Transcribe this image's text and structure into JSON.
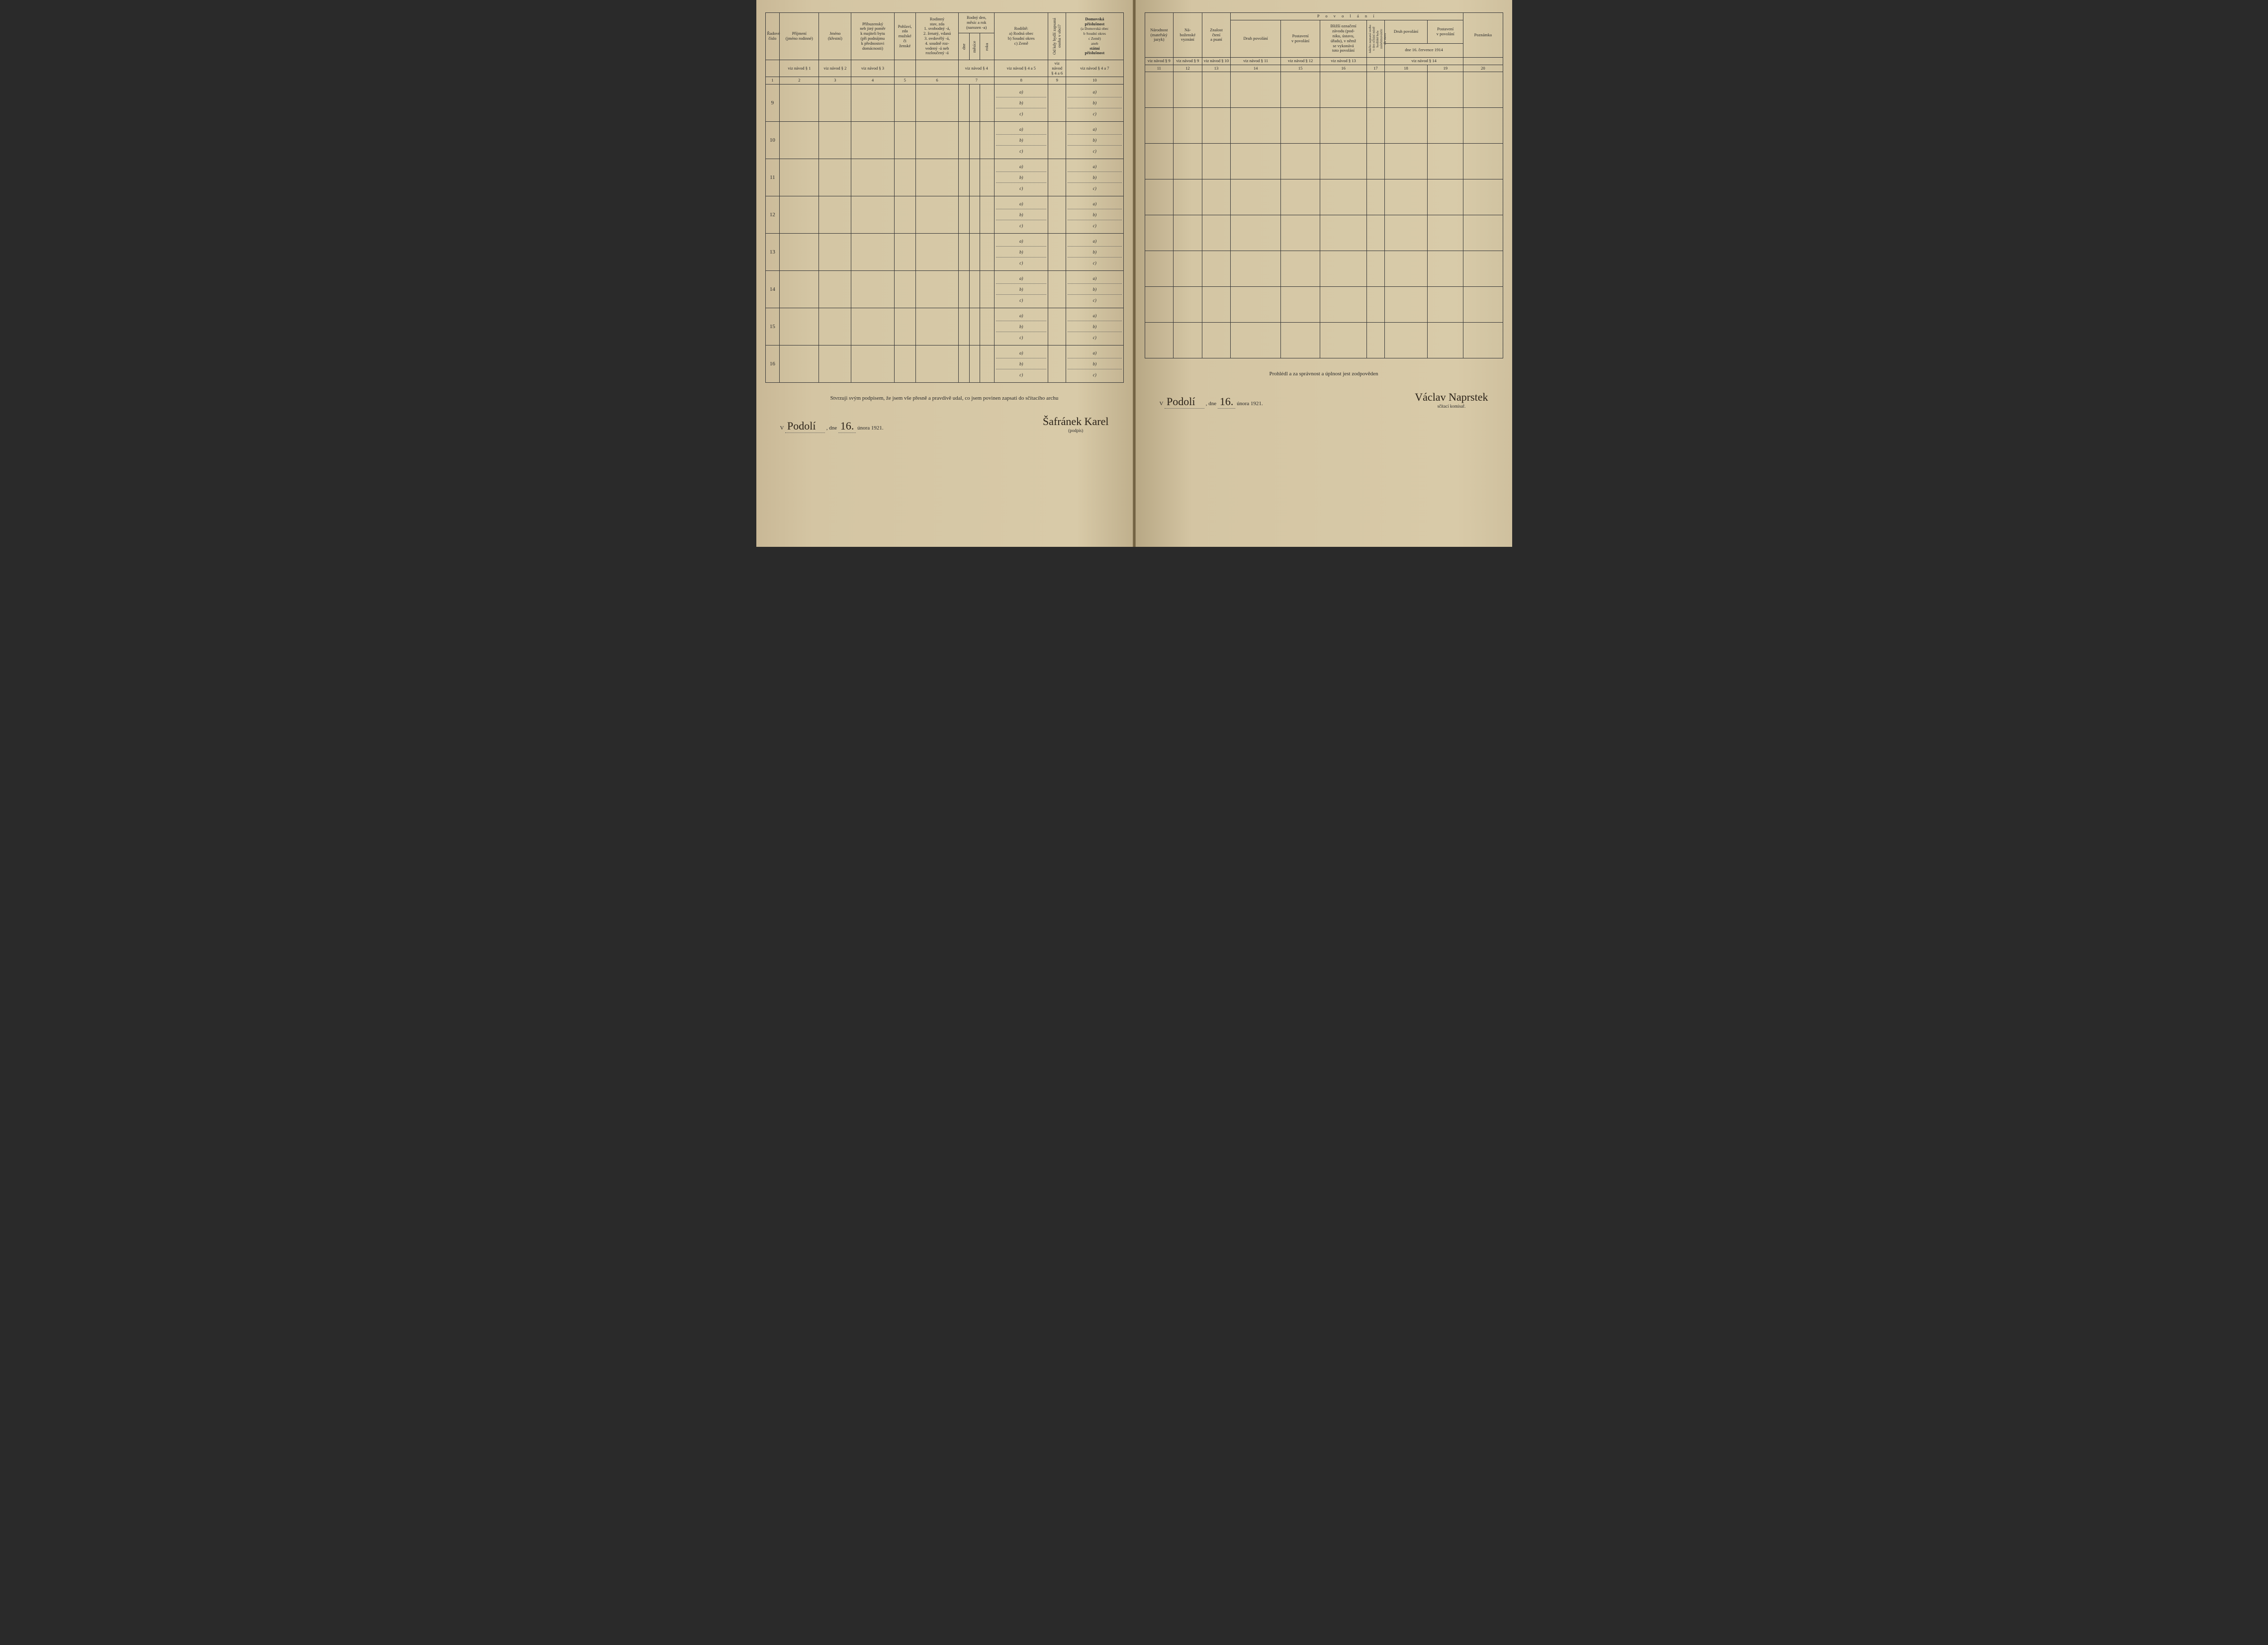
{
  "background_page_color": "#d4c5a3",
  "ink_color": "#2a2a2a",
  "border_color": "#3a3a3a",
  "handwriting_color": "#2a2218",
  "left": {
    "columns": {
      "c1": "Řadové\nčíslo",
      "c2": "Příjmení\n(jméno rodinné)",
      "c3": "Jméno\n(křestní)",
      "c4": "Příbuzenský\nneb jiný poměr\nk majiteli bytu\n(při podnájmu\nk přednostovi\ndomácnosti)",
      "c5": "Pohlaví,\nzda\nmužské\nči\nženské",
      "c6": "Rodinný\nstav, zda\n1. svobodný -á,\n2. ženatý, vdaná\n3. ovdovělý -á,\n4. soudně roz-\nvedený -á neb\nrozloučený -á",
      "c7": "Rodný den,\nměsíc a rok\n(narozen -a)",
      "c7a": "dne",
      "c7b": "měsíce",
      "c7c": "roku",
      "c8": "Rodiště:\na) Rodná obec\nb) Soudní okres\nc) Země",
      "c9": "Od kdy bydlí zapsaná\nosoba v obci?",
      "c10_title": "Domovská\npříslušnost",
      "c10_body": "(a Domovská obec\nb Soudní okres\nc Země)\naneb",
      "c10_em": "státní\npříslušnost"
    },
    "refs": {
      "r2": "viz návod § 1",
      "r3": "viz návod § 2",
      "r4": "viz návod § 3",
      "r7": "viz návod § 4",
      "r8": "viz návod § 4 a 5",
      "r9": "viz\nnávod\n§ 4 a 6",
      "r10": "viz návod § 4 a 7"
    },
    "nums": [
      "1",
      "2",
      "3",
      "4",
      "5",
      "6",
      "7",
      "8",
      "9",
      "10"
    ],
    "row_labels": [
      "9",
      "10",
      "11",
      "12",
      "13",
      "14",
      "15",
      "16"
    ],
    "sub_prefixes": [
      "a)",
      "b)",
      "c)"
    ],
    "footer_declaration": "Stvrzuji svým podpisem, že jsem vše přesně a pravdivě udal, co jsem povinen zapsati do sčítacího archu",
    "footer_place_prefix": "V",
    "footer_place": "Podolí",
    "footer_date_prefix": ", dne",
    "footer_date_day": "16.",
    "footer_date_rest": " února 1921.",
    "signature": "Šafránek Karel",
    "signature_sub": "(podpis)"
  },
  "right": {
    "columns": {
      "c11": "Národnost\n(mateřský\njazyk)",
      "c12": "Ná-\nboženské\nvyznání",
      "c13": "Znalost\nčtení\na psaní",
      "c14_19_title": "P o v o l á n í",
      "c14": "Druh povolání",
      "c15": "Postavení\nv povolání",
      "c16": "Bližší označení\nzávodu (pod-\nniku, ústavu,\núřadu), v němž\nse vykonává\ntoto povolání",
      "c17": "Jakého zapsaná osoba\nv den sčítání místě\nbydliště byla zaměstnavatele\ndle stavu",
      "c18": "Druh povolání",
      "c19": "Postavení\nv povolání",
      "c18_19_sub": "dne 16. července 1914",
      "c20": "Poznámka"
    },
    "refs": {
      "r11": "viz návod § 9",
      "r12": "viz návod § 9",
      "r13": "viz návod § 10",
      "r14": "viz návod § 11",
      "r15": "viz návod § 12",
      "r16": "viz návod § 13",
      "r18_19": "viz návod § 14"
    },
    "nums": [
      "11",
      "12",
      "13",
      "14",
      "15",
      "16",
      "17",
      "18",
      "19",
      "20"
    ],
    "footer_declaration": "Prohlédl a za správnost a úplnost jest zodpověden",
    "footer_place_prefix": "V",
    "footer_place": "Podolí",
    "footer_date_prefix": ", dne",
    "footer_date_day": "16.",
    "footer_date_rest": " února 1921.",
    "signature": "Václav Naprstek",
    "signature_sub": "sčítací komisař."
  }
}
